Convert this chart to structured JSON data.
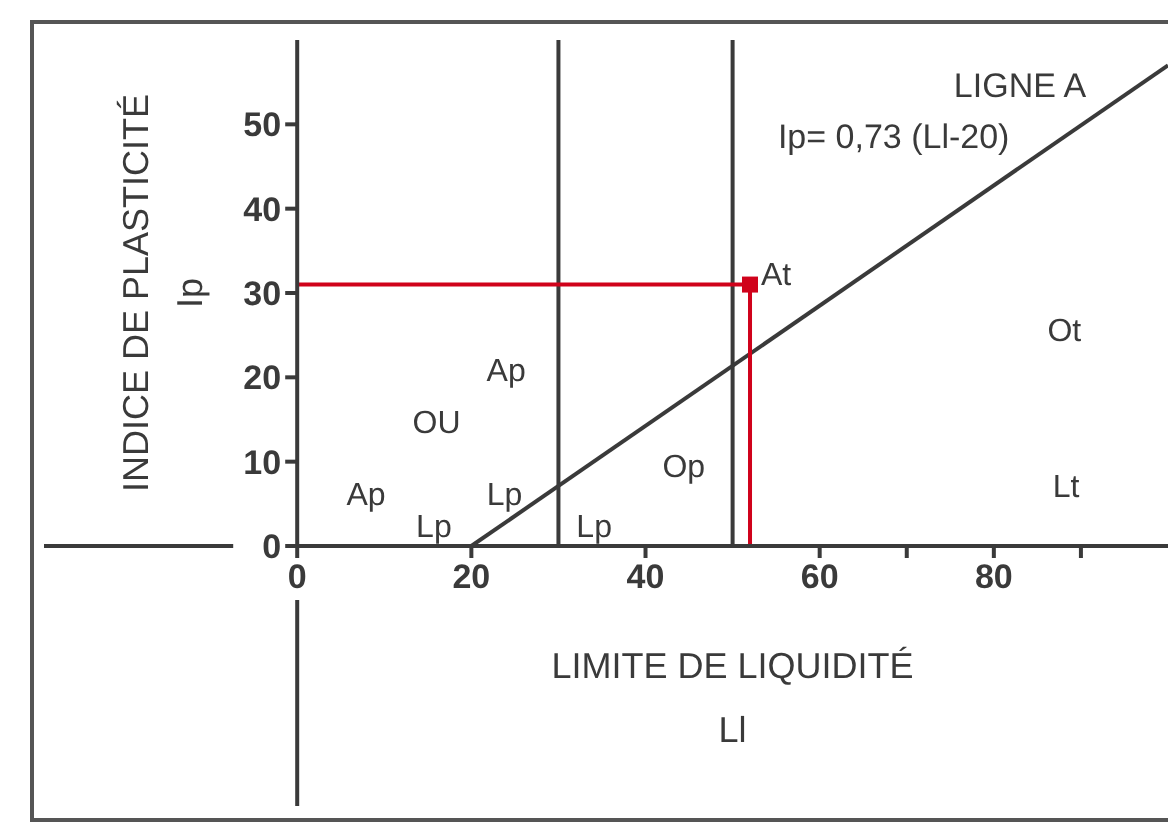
{
  "chart_data": {
    "type": "line",
    "xlabel": "LIMITE DE LIQUIDITÉ\nLl",
    "ylabel": "INDICE DE PLASTICITÉ\nIp",
    "xlim": [
      0,
      100
    ],
    "ylim": [
      0,
      60
    ],
    "xticks": [
      0,
      20,
      40,
      60,
      {
        "value": 70,
        "label": null
      },
      80,
      {
        "value": 90,
        "label": null
      }
    ],
    "yticks": [
      0,
      10,
      20,
      30,
      40,
      50
    ],
    "series": [
      {
        "name": "LIGNE A",
        "x": [
          20,
          100
        ],
        "values": [
          0,
          57
        ],
        "color": "#3a3a3a",
        "marker": "none"
      },
      {
        "x": [
          0,
          52,
          52
        ],
        "values": [
          31,
          31,
          0
        ],
        "color": "#d0021b",
        "marker": "none"
      },
      {
        "type": "scatter",
        "x": [
          52
        ],
        "values": [
          31
        ],
        "color": "#d0021b",
        "marker": "square"
      }
    ],
    "ref_lines": [
      {
        "axis": "x",
        "value": 30,
        "color": "#3a3a3a"
      },
      {
        "axis": "x",
        "value": 50,
        "color": "#3a3a3a"
      }
    ],
    "annotations": [
      "Ip= 0,73 (Ll-20)",
      "Ap",
      "Lp",
      "Lp",
      "OU",
      "Ap",
      "Lp",
      "Op",
      "At",
      "Ot",
      "Lt"
    ]
  }
}
